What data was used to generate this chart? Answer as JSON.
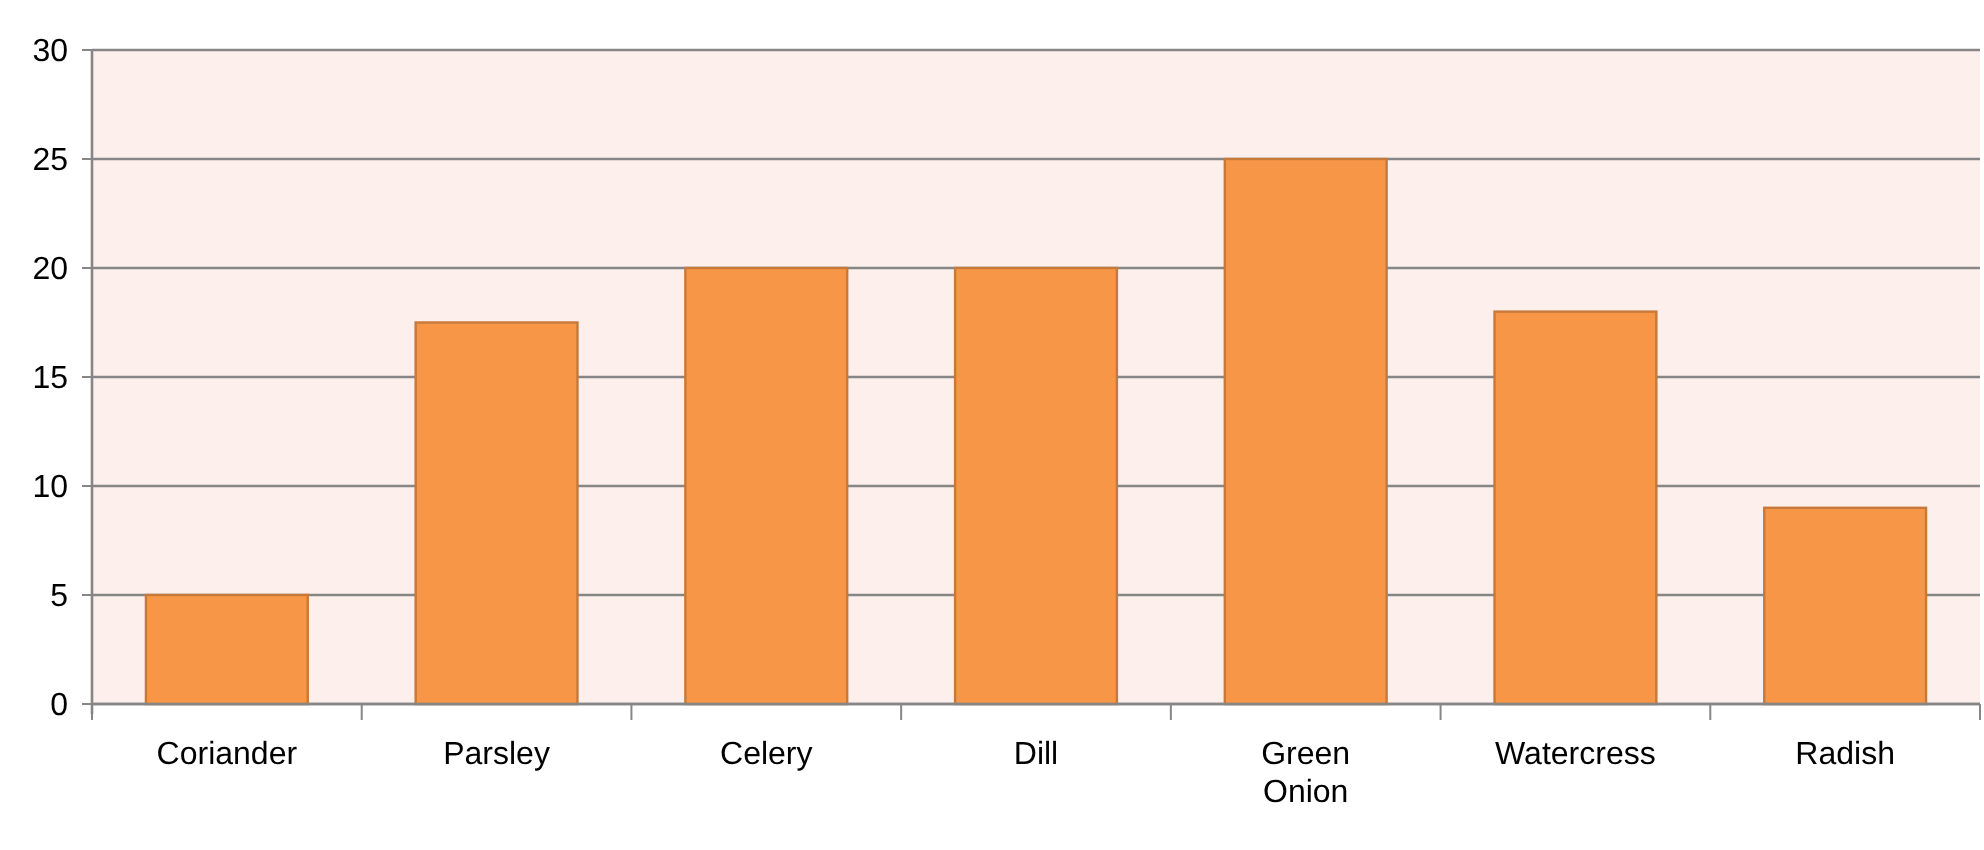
{
  "chart_data": {
    "type": "bar",
    "categories": [
      "Coriander",
      "Parsley",
      "Celery",
      "Dill",
      "Green Onion",
      "Watercress",
      "Radish"
    ],
    "values": [
      5,
      17.5,
      20,
      20,
      25,
      18,
      9
    ],
    "color": "#f79646",
    "ylim": [
      0,
      30
    ],
    "yticks": [
      0,
      5,
      10,
      15,
      20,
      25,
      30
    ],
    "grid": "y"
  }
}
